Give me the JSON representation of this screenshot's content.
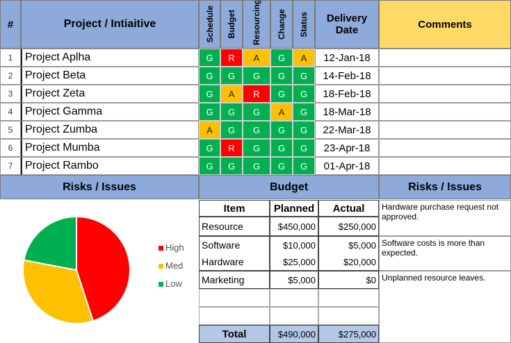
{
  "header": {
    "num": "#",
    "project": "Project / Intiaitive",
    "schedule": "Schedule",
    "budget": "Budget",
    "resourcing": "Resourcing",
    "change": "Change",
    "status": "Status",
    "delivery_line1": "Delivery",
    "delivery_line2": "Date",
    "comments": "Comments"
  },
  "projects": [
    {
      "num": "1",
      "name": "Project Aplha",
      "schedule": "G",
      "budget": "R",
      "resourcing": "A",
      "change": "G",
      "status": "A",
      "date": "12-Jan-18"
    },
    {
      "num": "2",
      "name": "Project Beta",
      "schedule": "G",
      "budget": "G",
      "resourcing": "G",
      "change": "G",
      "status": "G",
      "date": "14-Feb-18"
    },
    {
      "num": "3",
      "name": "Project Zeta",
      "schedule": "G",
      "budget": "A",
      "resourcing": "R",
      "change": "G",
      "status": "G",
      "date": "18-Feb-18"
    },
    {
      "num": "4",
      "name": "Project Gamma",
      "schedule": "G",
      "budget": "G",
      "resourcing": "G",
      "change": "A",
      "status": "G",
      "date": "18-Mar-18"
    },
    {
      "num": "5",
      "name": "Project Zumba",
      "schedule": "A",
      "budget": "G",
      "resourcing": "G",
      "change": "G",
      "status": "G",
      "date": "22-Mar-18"
    },
    {
      "num": "6",
      "name": "Project Mumba",
      "schedule": "G",
      "budget": "R",
      "resourcing": "G",
      "change": "G",
      "status": "G",
      "date": "23-Apr-18"
    },
    {
      "num": "7",
      "name": "Project Rambo",
      "schedule": "G",
      "budget": "G",
      "resourcing": "G",
      "change": "G",
      "status": "G",
      "date": "01-Apr-18"
    }
  ],
  "sections": {
    "risks_left": "Risks / Issues",
    "budget": "Budget",
    "risks_right": "Risks / Issues"
  },
  "budget_table": {
    "headers": {
      "item": "Item",
      "planned": "Planned",
      "actual": "Actual"
    },
    "rows": [
      {
        "item": "Resource",
        "planned": "$450,000",
        "actual": "$250,000"
      },
      {
        "item": "Software",
        "planned": "$10,000",
        "actual": "$5,000"
      },
      {
        "item": "Hardware",
        "planned": "$25,000",
        "actual": "$20,000"
      },
      {
        "item": "Marketing",
        "planned": "$5,000",
        "actual": "$0"
      }
    ],
    "total_label": "Total",
    "total_planned": "$490,000",
    "total_actual": "$275,000"
  },
  "risk_comments": [
    "Hardware purchase request not approved.",
    "Software costs is more than expected.",
    "Unplanned resource leaves."
  ],
  "chart_data": {
    "type": "pie",
    "title": "",
    "labels": [
      "High",
      "Med",
      "Low"
    ],
    "values": [
      45,
      33,
      22
    ],
    "colors": [
      "#ff0000",
      "#ffc000",
      "#00b050"
    ],
    "legend_position": "right"
  },
  "colors": {
    "G": "#00b050",
    "R": "#ff0000",
    "A": "#ffc000",
    "header": "#8eaadb",
    "comments_header": "#ffd966"
  }
}
